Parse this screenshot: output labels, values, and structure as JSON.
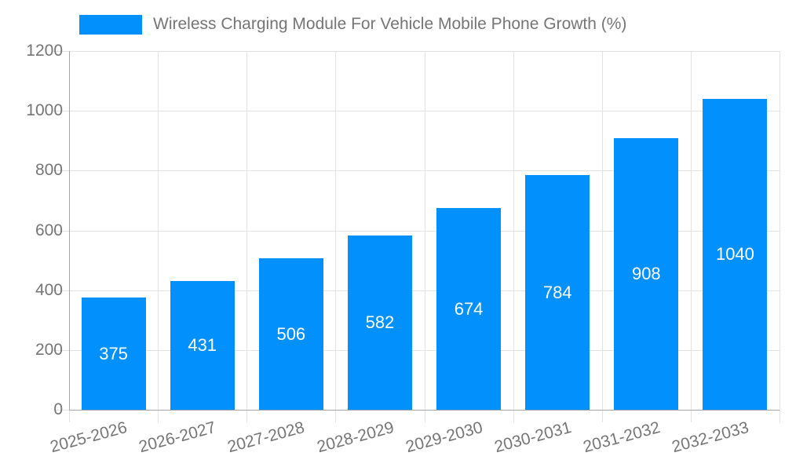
{
  "legend": {
    "label": "Wireless Charging Module For Vehicle Mobile Phone Growth (%)"
  },
  "colors": {
    "bar": "#0290fc",
    "grid": "#e3e3e3",
    "axis": "#a6a6a6",
    "text": "#757575",
    "value_label": "#ffffff",
    "background": "#ffffff"
  },
  "chart_data": {
    "type": "bar",
    "title": "Wireless Charging Module For Vehicle Mobile Phone Growth (%)",
    "categories": [
      "2025-2026",
      "2026-2027",
      "2027-2028",
      "2028-2029",
      "2029-2030",
      "2030-2031",
      "2031-2032",
      "2032-2033"
    ],
    "values": [
      375,
      431,
      506,
      582,
      674,
      784,
      908,
      1040
    ],
    "xlabel": "",
    "ylabel": "",
    "ylim": [
      0,
      1200
    ],
    "yticks": [
      0,
      200,
      400,
      600,
      800,
      1000,
      1200
    ],
    "grid": true,
    "legend_position": "top",
    "bar_value_labels_inside": true
  }
}
